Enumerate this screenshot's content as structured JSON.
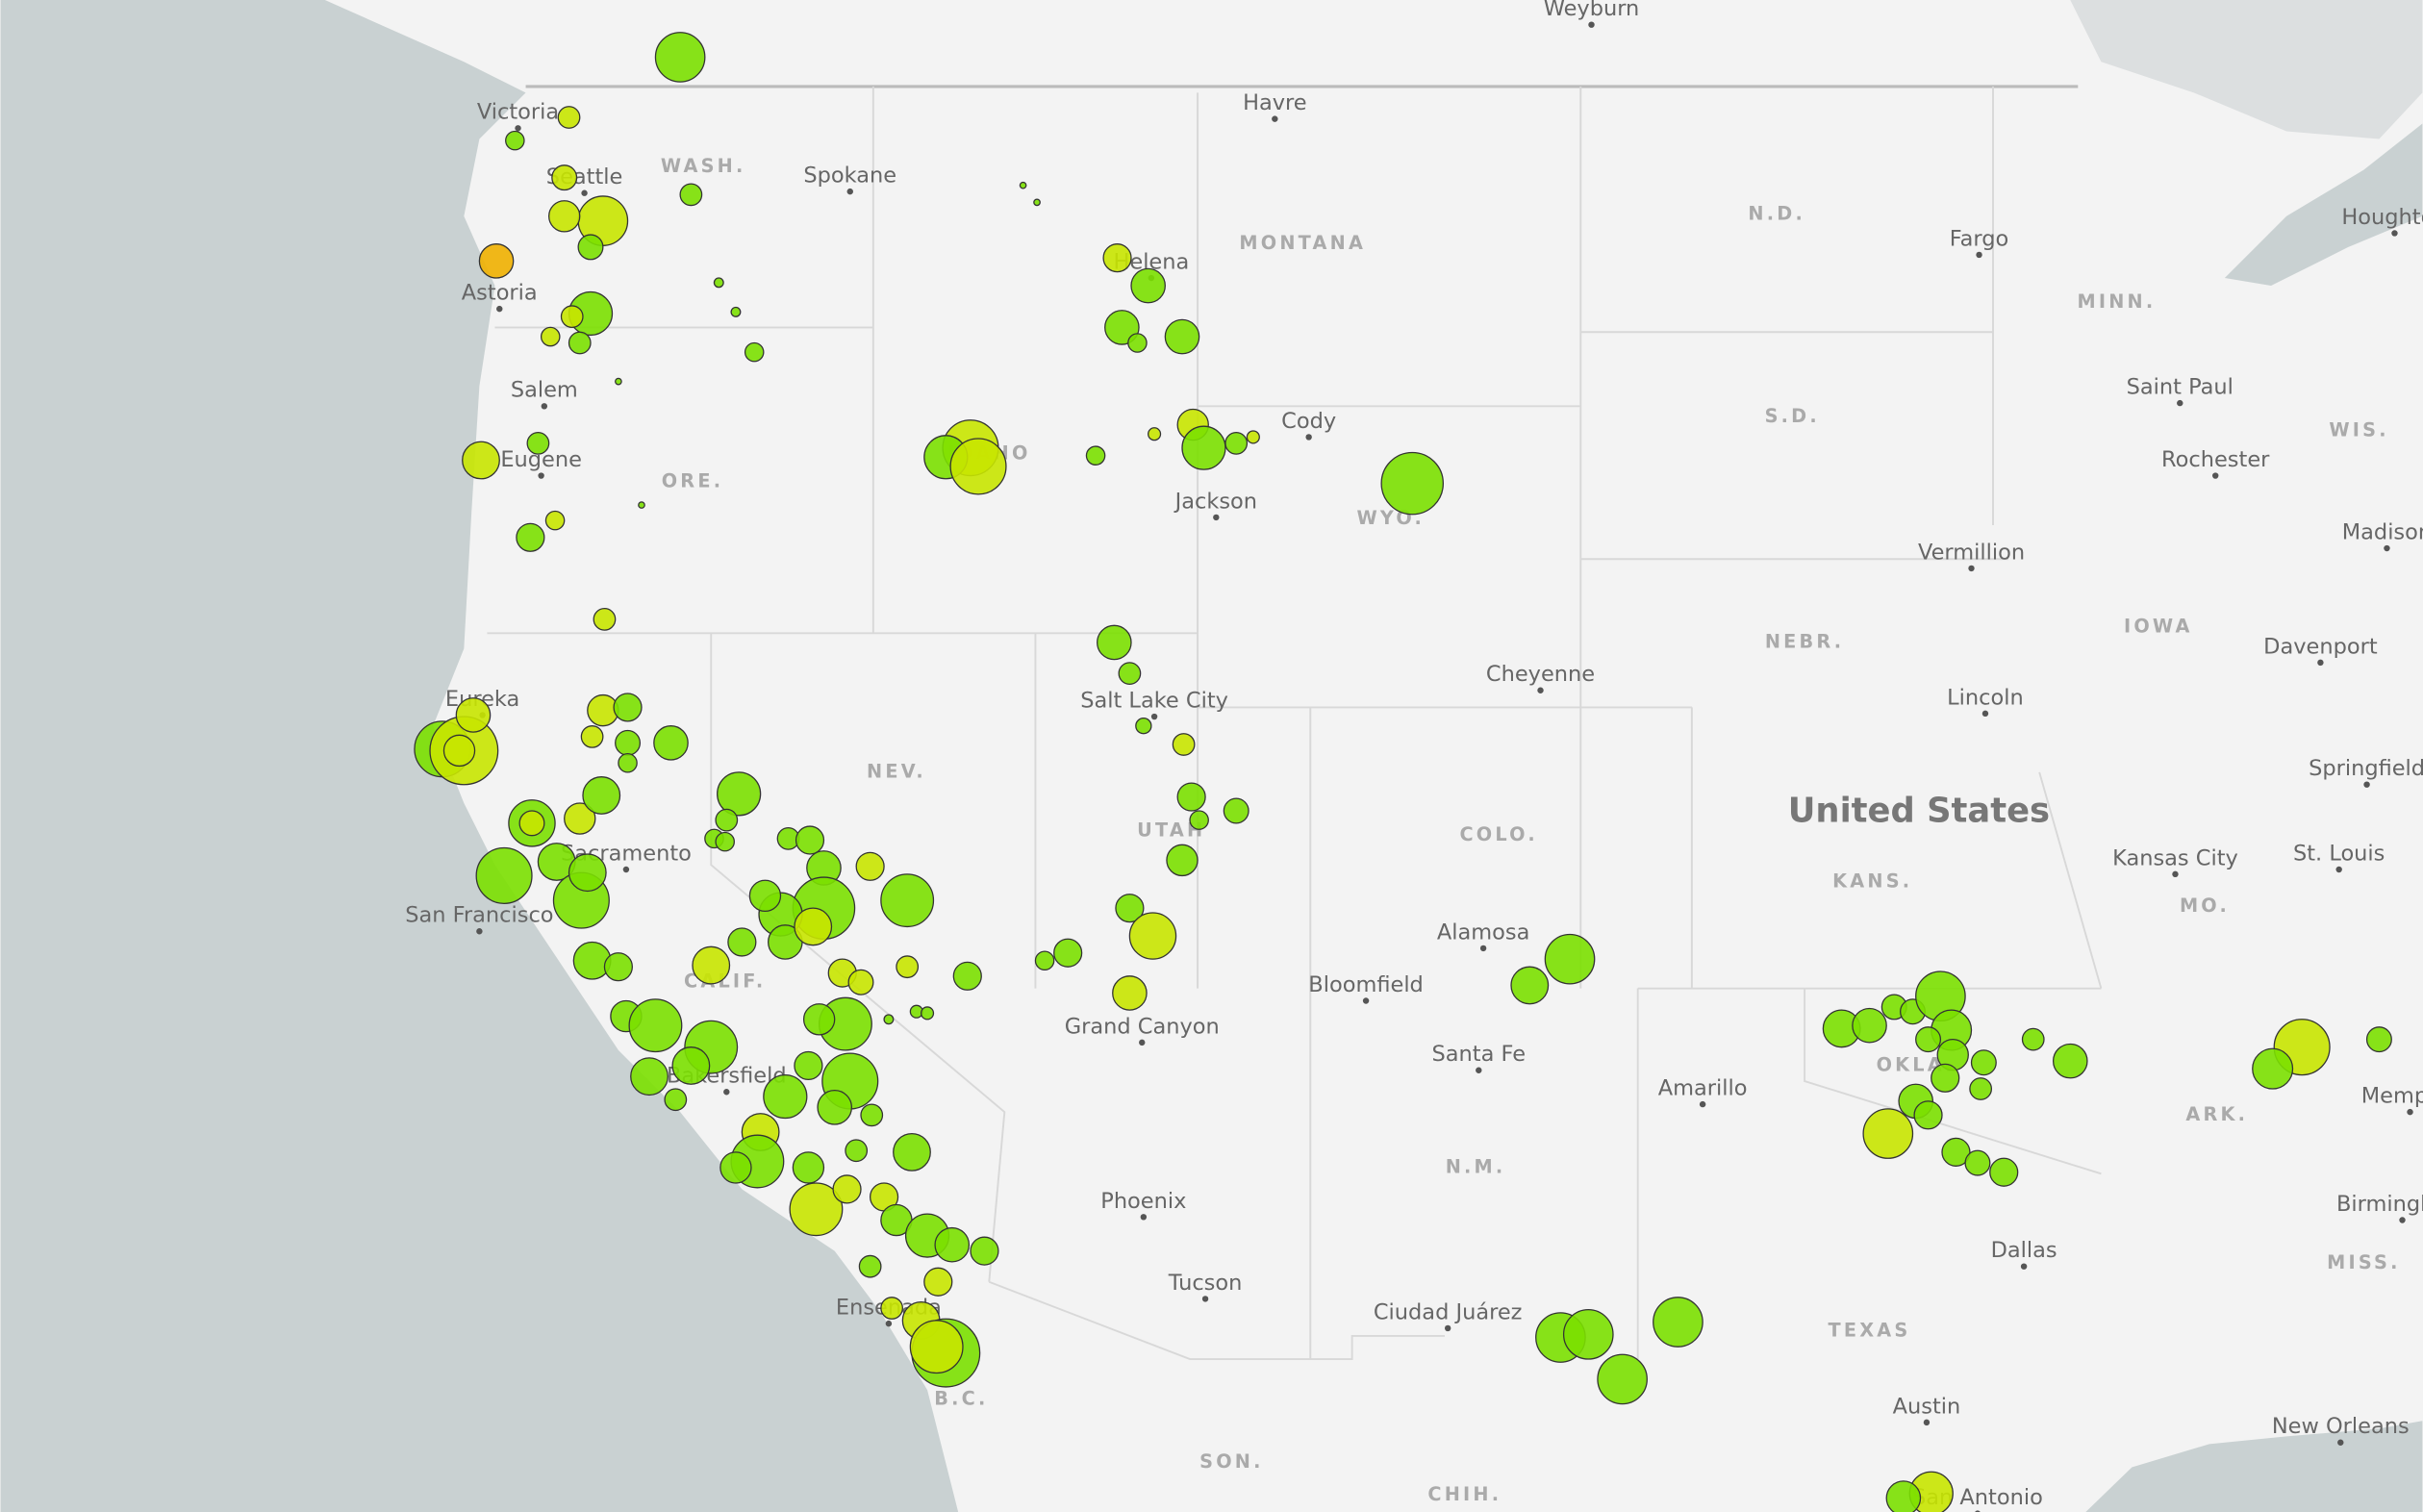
{
  "places": [
    "Weyburn",
    "Havre",
    "Victoria",
    "Spokane",
    "Seattle",
    "Astoria",
    "Salem",
    "Eugene",
    "Helena",
    "Cody",
    "Jackson",
    "Fargo",
    "Saint Paul",
    "Rochester",
    "Vermillion",
    "Madison",
    "Houghton",
    "Cheyenne",
    "Salt Lake City",
    "Eureka",
    "Sacramento",
    "San Francisco",
    "Lincoln",
    "Davenport",
    "Springfield",
    "Kansas City",
    "St. Louis",
    "Alamosa",
    "Bloomfield",
    "Grand Canyon",
    "Santa Fe",
    "Amarillo",
    "Bakersfield",
    "Phoenix",
    "Tucson",
    "Ciudad Juárez",
    "Dallas",
    "Austin",
    "New Orleans",
    "San Antonio",
    "Memphis",
    "Birmingham",
    "Ensenada"
  ],
  "regions": [
    "WASH.",
    "MONTANA",
    "N.D.",
    "MINN.",
    "IDAHO",
    "ORE.",
    "WYO.",
    "S.D.",
    "WIS.",
    "IOWA",
    "NEBR.",
    "NEV.",
    "UTAH",
    "COLO.",
    "KANS.",
    "MO.",
    "CALIF.",
    "N.M.",
    "ARK.",
    "MISS.",
    "TEXAS",
    "B.C.",
    "SON.",
    "CHIH.",
    "OKLA."
  ],
  "country": "United States"
}
